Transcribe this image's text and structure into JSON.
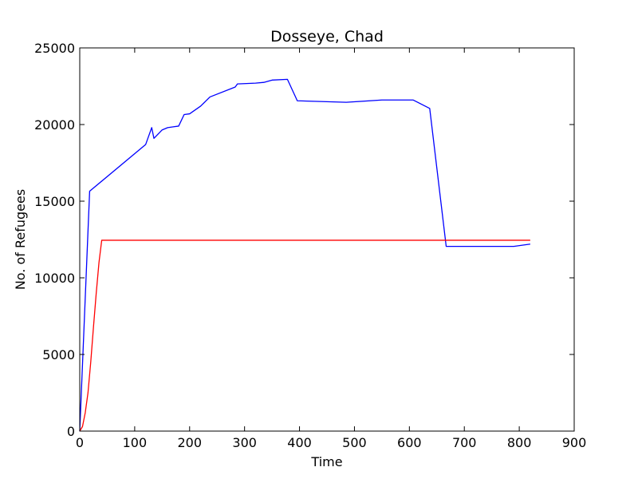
{
  "chart_data": {
    "type": "line",
    "title": "Dosseye, Chad",
    "xlabel": "Time",
    "ylabel": "No. of Refugees",
    "xlim": [
      0,
      900
    ],
    "ylim": [
      0,
      25000
    ],
    "x_ticks": [
      0,
      100,
      200,
      300,
      400,
      500,
      600,
      700,
      800,
      900
    ],
    "y_ticks": [
      0,
      5000,
      10000,
      15000,
      20000,
      25000
    ],
    "grid": false,
    "legend": "none",
    "series": [
      {
        "color": "#0000ff",
        "x": [
          0,
          18,
          120,
          131,
          135,
          150,
          160,
          170,
          180,
          190,
          200,
          220,
          237,
          283,
          287,
          320,
          335,
          350,
          378,
          396,
          485,
          550,
          607,
          637,
          667,
          700,
          790,
          820
        ],
        "y": [
          0,
          15650,
          18700,
          19800,
          19100,
          19650,
          19800,
          19850,
          19900,
          20650,
          20700,
          21200,
          21800,
          22450,
          22650,
          22700,
          22750,
          22900,
          22950,
          21550,
          21450,
          21600,
          21600,
          21050,
          12050,
          12050,
          12050,
          12200
        ]
      },
      {
        "color": "#ff0000",
        "x": [
          0,
          5,
          10,
          15,
          20,
          25,
          30,
          35,
          40,
          820
        ],
        "y": [
          0,
          300,
          1200,
          2500,
          4500,
          6800,
          9000,
          11000,
          12450,
          12450
        ]
      }
    ]
  }
}
